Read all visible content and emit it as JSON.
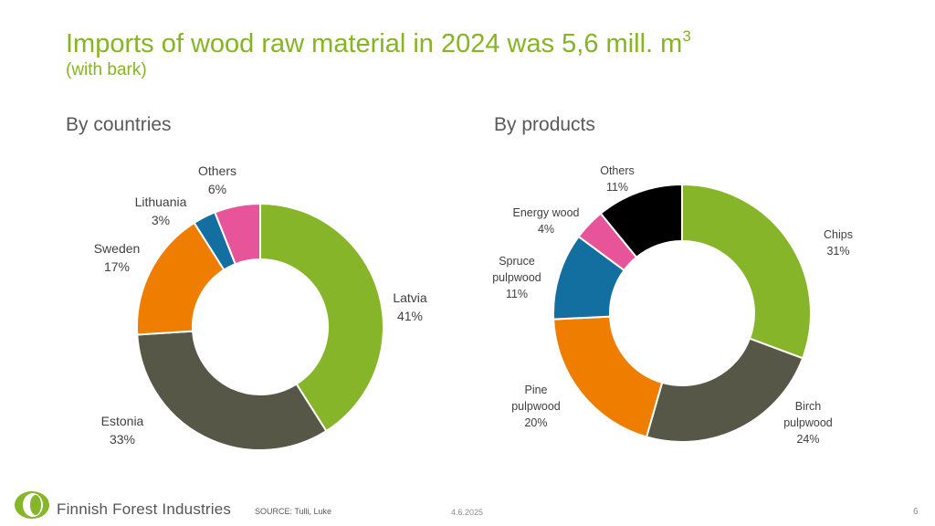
{
  "header": {
    "title": "Imports of wood raw material in 2024 was 5,6 mill. m",
    "title_sup": "3",
    "subtitle": "(with bark)"
  },
  "sections": {
    "left": "By countries",
    "right": "By products"
  },
  "chart_data": [
    {
      "type": "pie",
      "variant": "donut",
      "title": "By countries",
      "categories": [
        "Latvia",
        "Estonia",
        "Sweden",
        "Lithuania",
        "Others"
      ],
      "values": [
        41,
        33,
        17,
        3,
        6
      ],
      "value_labels": [
        "41%",
        "33%",
        "17%",
        "3%",
        "6%"
      ],
      "colors": [
        "#86B52A",
        "#575747",
        "#EE7D00",
        "#146FA1",
        "#E8549A"
      ]
    },
    {
      "type": "pie",
      "variant": "donut",
      "title": "By products",
      "categories": [
        [
          "Chips"
        ],
        [
          "Birch",
          "pulpwood"
        ],
        [
          "Pine",
          "pulpwood"
        ],
        [
          "Spruce",
          "pulpwood"
        ],
        [
          "Energy wood"
        ],
        [
          "Others"
        ]
      ],
      "values": [
        31,
        24,
        20,
        11,
        4,
        11
      ],
      "value_labels": [
        "31%",
        "24%",
        "20%",
        "11%",
        "4%",
        "11%"
      ],
      "colors": [
        "#86B52A",
        "#575747",
        "#EE7D00",
        "#146FA1",
        "#E8549A",
        "#000000"
      ]
    }
  ],
  "footer": {
    "brand": "Finnish Forest Industries",
    "source": "SOURCE: Tulli, Luke",
    "date": "4.6.2025",
    "page": "6"
  },
  "colors": {
    "accent": "#86B425",
    "logo_green": "#86B52A",
    "text_gray": "#595959"
  }
}
